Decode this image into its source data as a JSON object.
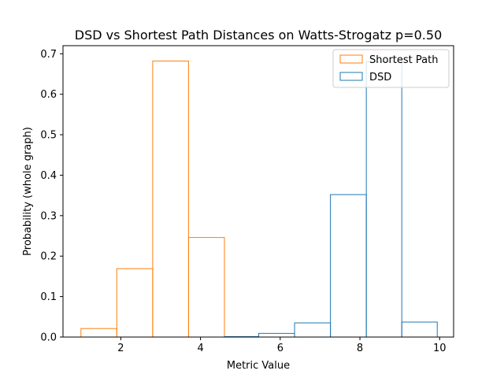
{
  "chart_data": {
    "type": "histogram-step",
    "title": "DSD vs Shortest Path Distances on Watts-Strogatz p=0.50",
    "xlabel": "Metric Value",
    "ylabel": "Probability (whole graph)",
    "xlim": [
      0.55,
      10.35
    ],
    "ylim": [
      0,
      0.72
    ],
    "xticks": [
      2,
      4,
      6,
      8,
      10
    ],
    "yticks": [
      0.0,
      0.1,
      0.2,
      0.3,
      0.4,
      0.5,
      0.6,
      0.7
    ],
    "grid": false,
    "legend_position": "top-right",
    "series": [
      {
        "name": "Shortest Path",
        "color": "#ff7f0e",
        "bin_edges": [
          1.0,
          1.9,
          2.8,
          3.7,
          4.6
        ],
        "values": [
          0.021,
          0.169,
          0.682,
          0.246
        ]
      },
      {
        "name": "DSD",
        "color": "#1f77b4",
        "bin_edges": [
          4.6,
          5.46,
          6.36,
          7.26,
          8.16,
          9.05,
          9.94
        ],
        "values": [
          0.001,
          0.009,
          0.035,
          0.352,
          0.68,
          0.037
        ]
      }
    ]
  }
}
